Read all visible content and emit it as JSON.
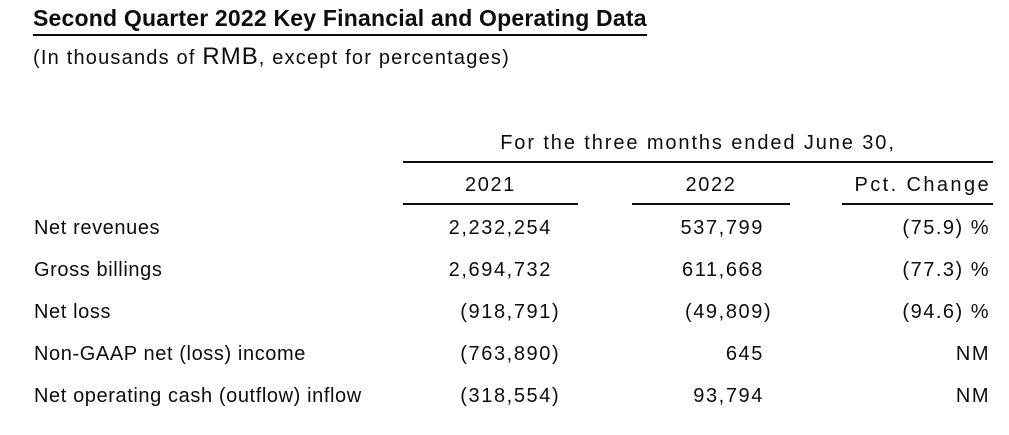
{
  "document": {
    "title": "Second Quarter 2022 Key Financial and Operating Data",
    "subtitle_prefix": "(In thousands of ",
    "subtitle_currency": "RMB",
    "subtitle_suffix": ", except for percentages)"
  },
  "table": {
    "span_header": "For the three months ended June 30,",
    "col_2021": "2021",
    "col_2022": "2022",
    "col_pct": "Pct. Change",
    "rows": [
      {
        "label": "Net revenues",
        "v2021": "2,232,254",
        "v2022": "537,799",
        "pct": "(75.9) %"
      },
      {
        "label": "Gross billings",
        "v2021": "2,694,732",
        "v2022": "611,668",
        "pct": "(77.3) %"
      },
      {
        "label": "Net loss",
        "v2021": "(918,791)",
        "v2022": "(49,809)",
        "pct": "(94.6) %"
      },
      {
        "label": "Non-GAAP net (loss) income",
        "v2021": "(763,890)",
        "v2022": "645",
        "pct": "NM"
      },
      {
        "label": "Net operating cash (outflow) inflow",
        "v2021": "(318,554)",
        "v2022": "93,794",
        "pct": "NM"
      }
    ]
  },
  "colors": {
    "text": "#0d0d0d",
    "rule": "#0d0d0d",
    "background": "#ffffff"
  }
}
